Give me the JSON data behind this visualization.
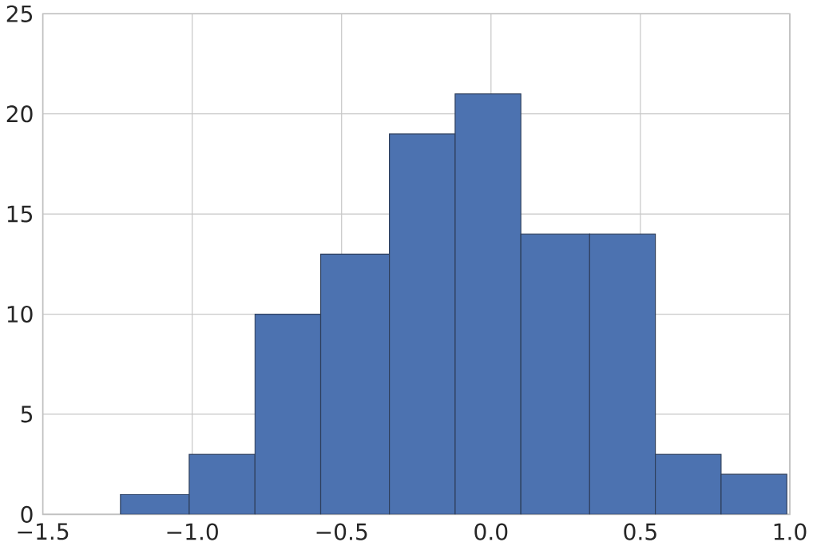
{
  "chart_data": {
    "type": "histogram",
    "bins": [
      -1.24,
      -1.01,
      -0.79,
      -0.57,
      -0.34,
      -0.12,
      0.1,
      0.33,
      0.55,
      0.77,
      0.99
    ],
    "values": [
      1,
      3,
      10,
      13,
      19,
      21,
      14,
      14,
      3,
      2
    ],
    "color": "#4c72b0",
    "xlim": [
      -1.5,
      1.0
    ],
    "ylim": [
      0,
      25
    ],
    "xticks": [
      {
        "value": -1.5,
        "label": "−1.5"
      },
      {
        "value": -1.0,
        "label": "−1.0"
      },
      {
        "value": -0.5,
        "label": "−0.5"
      },
      {
        "value": 0.0,
        "label": "0.0"
      },
      {
        "value": 0.5,
        "label": "0.5"
      },
      {
        "value": 1.0,
        "label": "1.0"
      }
    ],
    "yticks": [
      0,
      5,
      10,
      15,
      20,
      25
    ],
    "grid": true
  }
}
